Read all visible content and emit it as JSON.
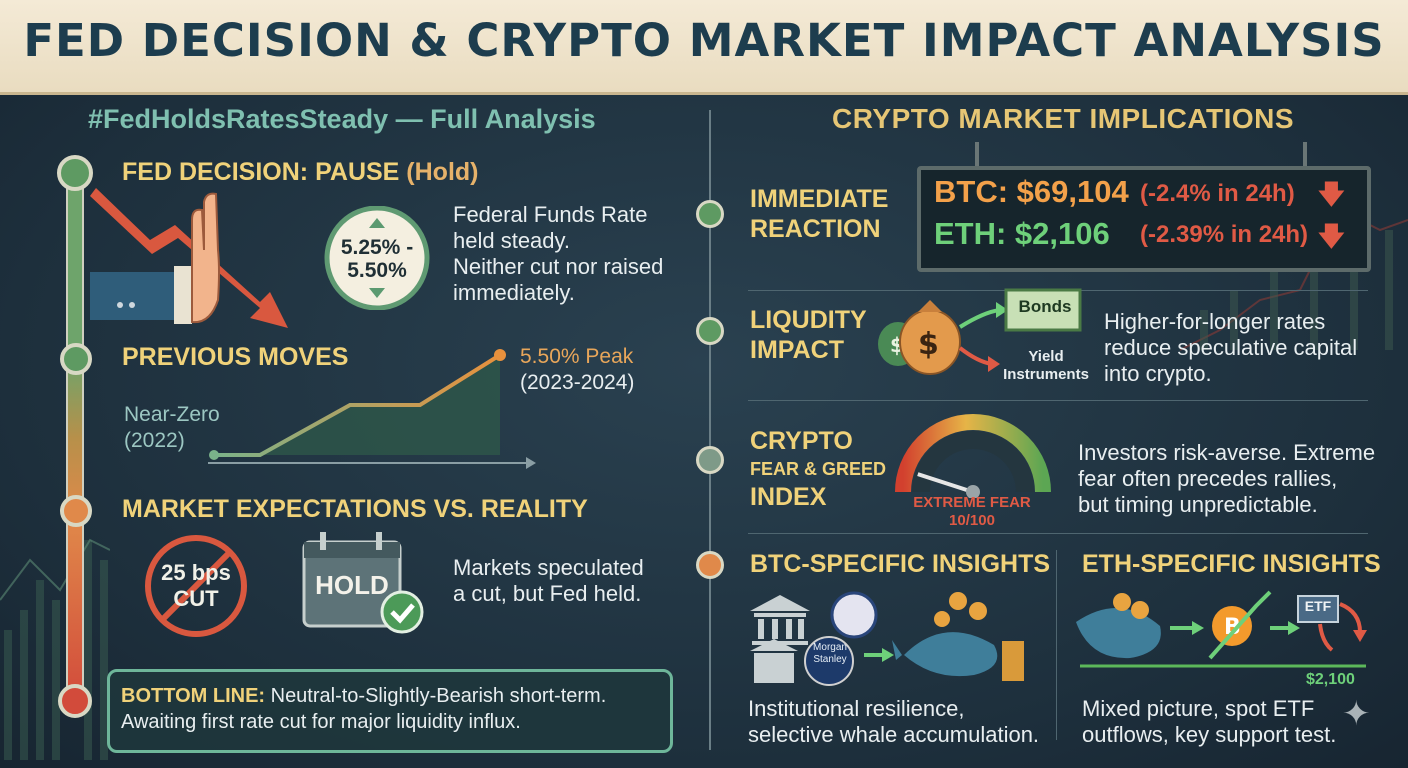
{
  "title": "FED DECISION & CRYPTO MARKET IMPACT ANALYSIS",
  "left": {
    "subtitle": "#FedHoldsRatesSteady — Full Analysis",
    "decision": {
      "heading_prefix": "FED DECISION: PAUSE ",
      "heading_hold": "(Hold)",
      "rate_line1": "5.25% -",
      "rate_line2": "5.50%",
      "desc_line1": "Federal Funds Rate",
      "desc_line2": "held steady.",
      "desc_line3": "Neither cut nor raised",
      "desc_line4": "immediately."
    },
    "previous": {
      "heading": "PREVIOUS MOVES",
      "peak_line1": "5.50% Peak",
      "peak_line2": "(2023-2024)",
      "start_line1": "Near-Zero",
      "start_line2": "(2022)"
    },
    "expectations": {
      "heading": "MARKET EXPECTATIONS VS. REALITY",
      "cut_line1": "25 bps",
      "cut_line2": "CUT",
      "hold_label": "HOLD",
      "desc_line1": "Markets speculated",
      "desc_line2": "a cut, but Fed held."
    },
    "bottom_line": {
      "label": "BOTTOM LINE:",
      "text1": " Neutral-to-Slightly-Bearish short-term.",
      "text2": "Awaiting first rate cut for major liquidity influx."
    }
  },
  "right": {
    "subtitle": "CRYPTO MARKET IMPLICATIONS",
    "immediate": {
      "heading_line1": "IMMEDIATE",
      "heading_line2": "REACTION",
      "btc_label": "BTC: $69,104",
      "btc_change": "(-2.4% in 24h)",
      "eth_label": "ETH: $2,106",
      "eth_change": "(-2.39% in 24h)"
    },
    "liquidity": {
      "heading_line1": "LIQUDITY",
      "heading_line2": "IMPACT",
      "bonds_label": "Bonds",
      "yield_line1": "Yield",
      "yield_line2": "Instruments",
      "desc_line1": "Higher-for-longer rates",
      "desc_line2": "reduce speculative capital",
      "desc_line3": "into crypto."
    },
    "fear": {
      "heading_line1": "CRYPTO",
      "heading_line2": "FEAR & GREED",
      "heading_line3": "INDEX",
      "gauge_label": "EXTREME FEAR",
      "gauge_value": "10/100",
      "gauge_level": 0.1,
      "desc_line1": "Investors risk-averse. Extreme",
      "desc_line2": "fear often precedes rallies,",
      "desc_line3": "but timing unpredictable."
    },
    "btc_insights": {
      "heading": "BTC-SPECIFIC INSIGHTS",
      "bank_label_line1": "Morgan",
      "bank_label_line2": "Stanley",
      "desc_line1": "Institutional resilience,",
      "desc_line2": "selective whale accumulation."
    },
    "eth_insights": {
      "heading": "ETH-SPECIFIC INSIGHTS",
      "etf_label": "ETF",
      "price_label": "$2,100",
      "desc_line1": "Mixed picture, spot ETF",
      "desc_line2": "outflows, key support test."
    }
  },
  "colors": {
    "accent_yellow": "#f0d27a",
    "bearish_red": "#e05a45",
    "bullish_green": "#6ed07a",
    "btc_orange": "#f3a14a"
  }
}
